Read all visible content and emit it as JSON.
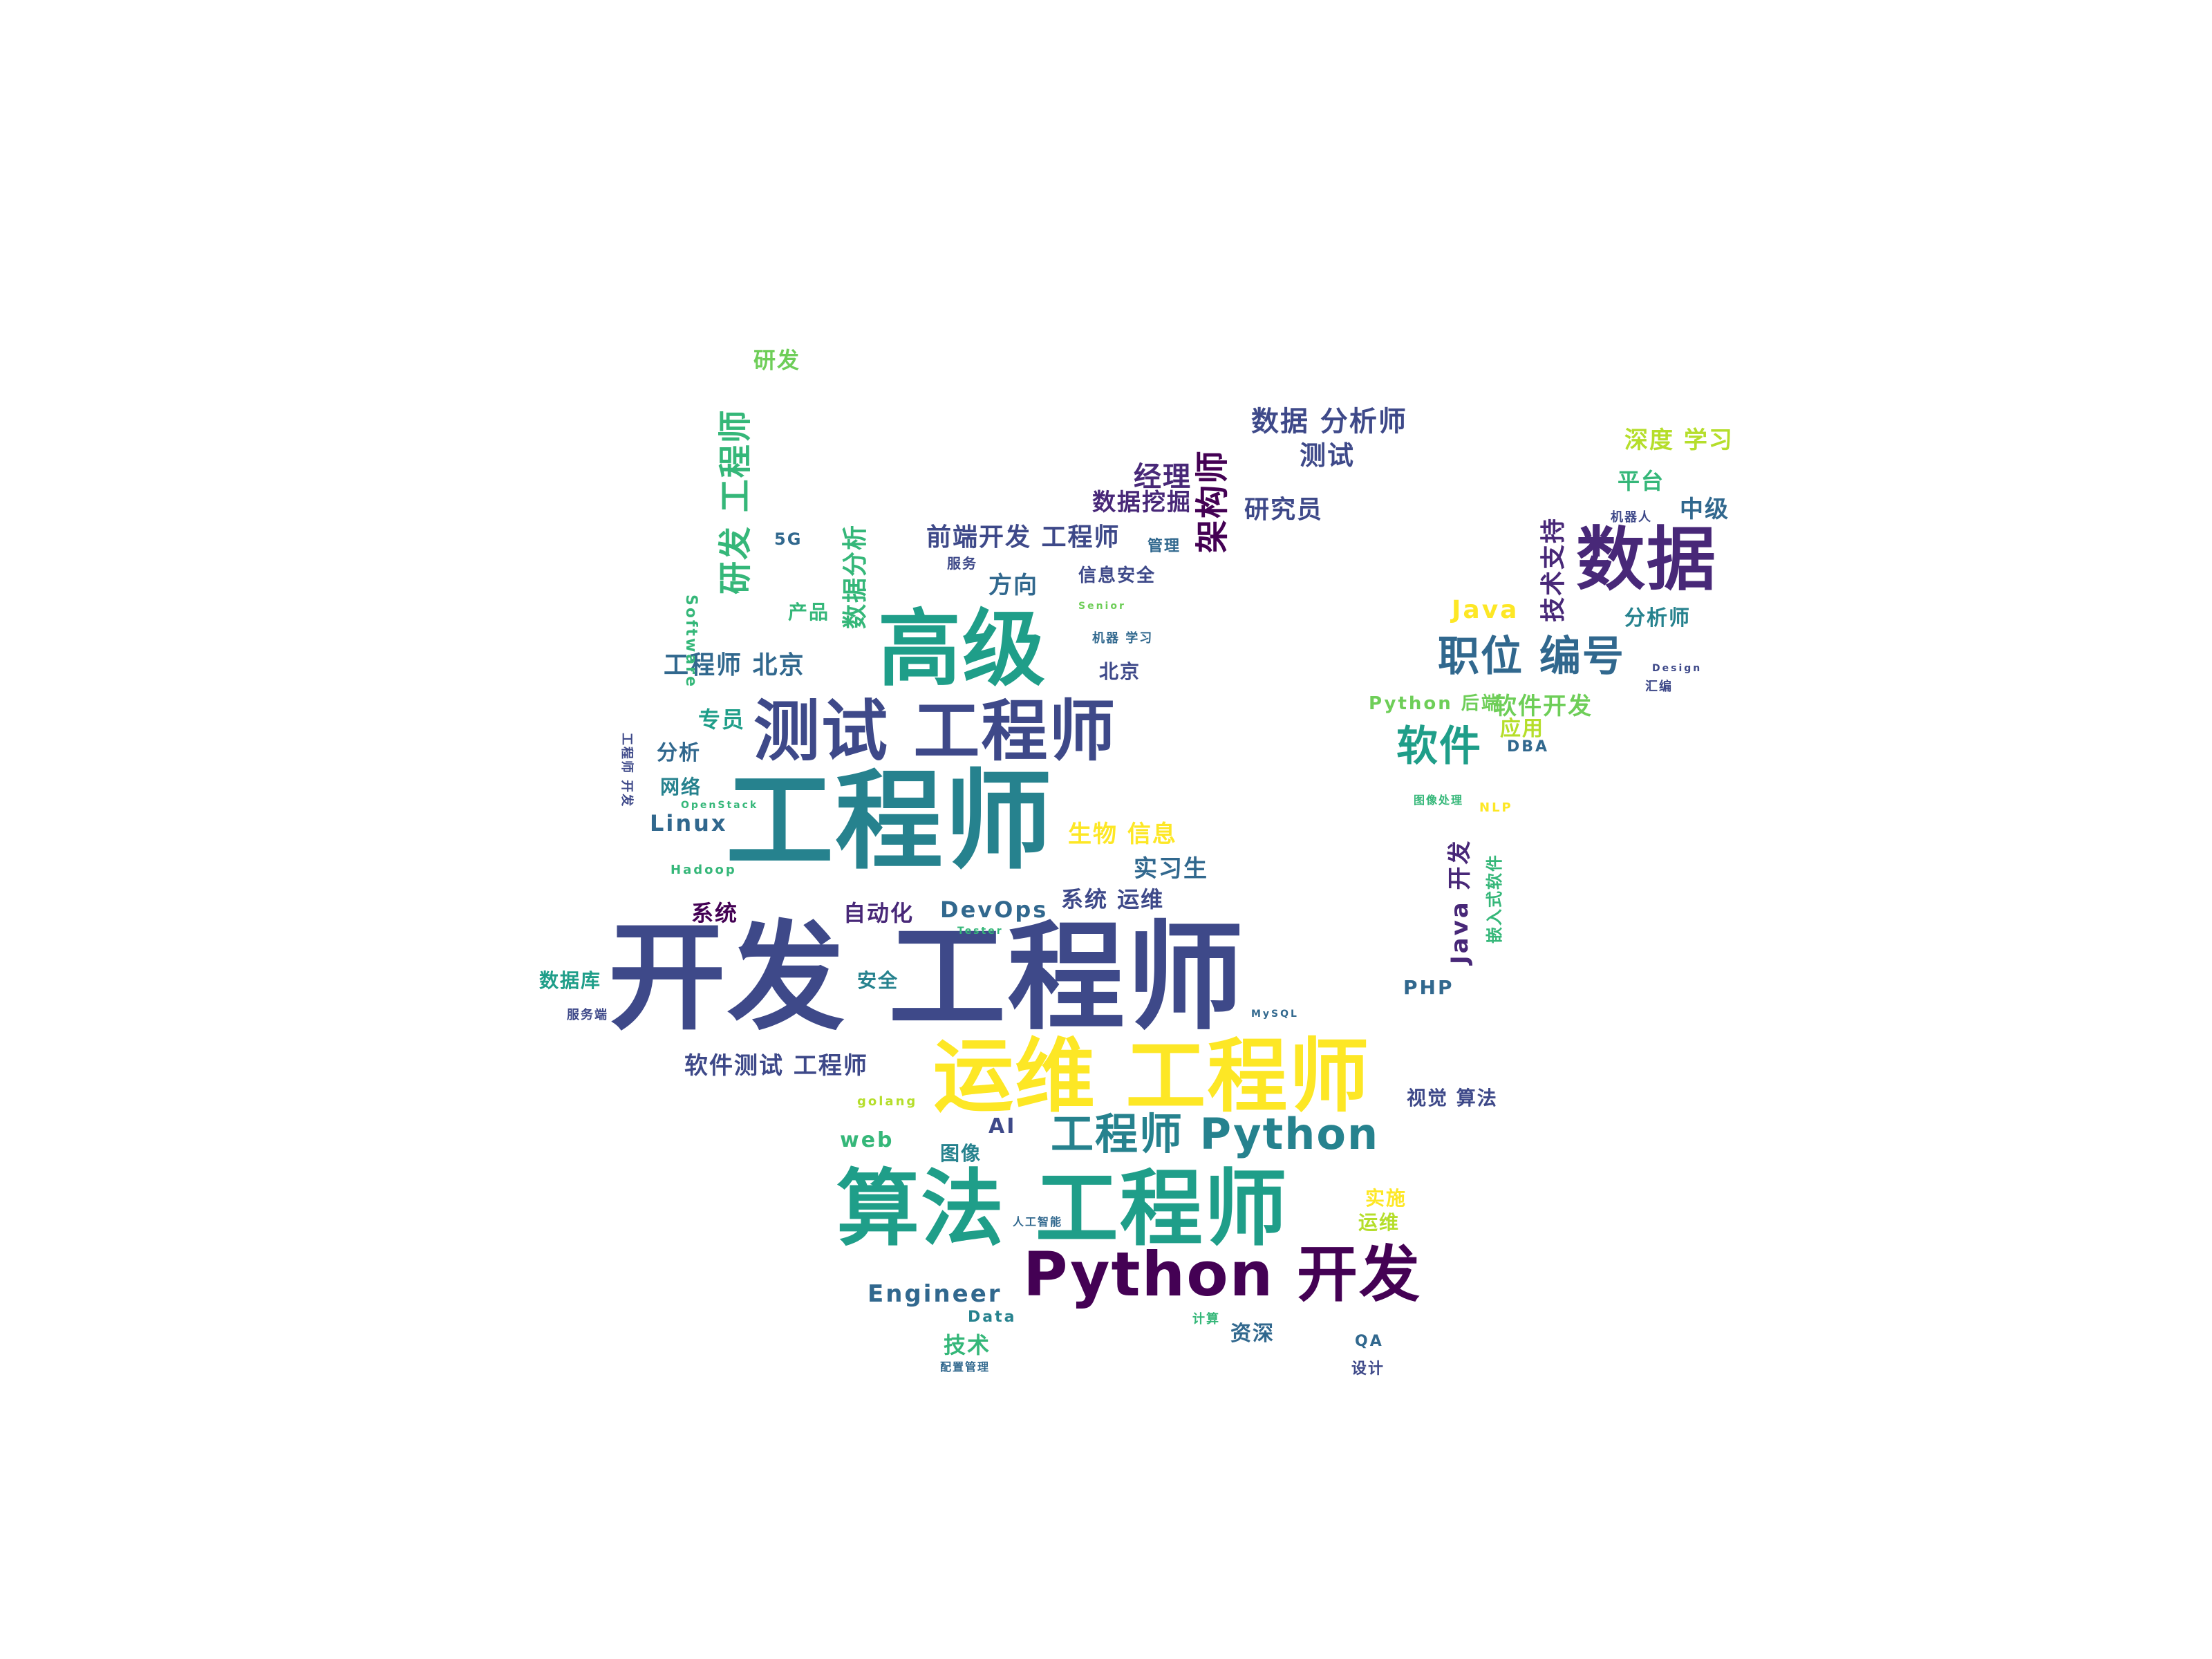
{
  "palette": {
    "background": "#ffffff",
    "dark_purple": "#440154",
    "purple": "#482878",
    "indigo": "#3e4989",
    "blue": "#31688e",
    "teal": "#26828e",
    "green_teal": "#1f9e89",
    "green": "#35b779",
    "light_green": "#6ece58",
    "lime": "#b5de2b",
    "yellow": "#fde725"
  },
  "words": [
    {
      "text": "开发 工程师",
      "color": "#3e4989"
    },
    {
      "text": "工程师",
      "color": "#26828e"
    },
    {
      "text": "运维 工程师",
      "color": "#fde725"
    },
    {
      "text": "算法 工程师",
      "color": "#1f9e89"
    },
    {
      "text": "测试 工程师",
      "color": "#3e4989"
    },
    {
      "text": "高级",
      "color": "#1f9e89"
    },
    {
      "text": "Python 开发",
      "color": "#440154"
    },
    {
      "text": "数据",
      "color": "#482878"
    },
    {
      "text": "工程师 Python",
      "color": "#26828e"
    },
    {
      "text": "职位 编号",
      "color": "#31688e"
    },
    {
      "text": "软件",
      "color": "#1f9e89"
    },
    {
      "text": "数据 分析师",
      "color": "#3e4989"
    },
    {
      "text": "研发 工程师",
      "color": "#35b779"
    },
    {
      "text": "前端开发 工程师",
      "color": "#3e4989"
    },
    {
      "text": "架构师",
      "color": "#440154"
    },
    {
      "text": "经理",
      "color": "#482878"
    },
    {
      "text": "数据挖掘",
      "color": "#482878"
    },
    {
      "text": "研究员",
      "color": "#3e4989"
    },
    {
      "text": "测试",
      "color": "#3e4989"
    },
    {
      "text": "深度 学习",
      "color": "#b5de2b"
    },
    {
      "text": "平台",
      "color": "#35b779"
    },
    {
      "text": "中级",
      "color": "#31688e"
    },
    {
      "text": "技术支持",
      "color": "#482878"
    },
    {
      "text": "Java",
      "color": "#fde725"
    },
    {
      "text": "分析师",
      "color": "#26828e"
    },
    {
      "text": "软件开发",
      "color": "#6ece58"
    },
    {
      "text": "应用",
      "color": "#b5de2b"
    },
    {
      "text": "Python 后端",
      "color": "#6ece58"
    },
    {
      "text": "研发",
      "color": "#6ece58"
    },
    {
      "text": "数据分析",
      "color": "#35b779"
    },
    {
      "text": "方向",
      "color": "#31688e"
    },
    {
      "text": "信息安全",
      "color": "#3e4989"
    },
    {
      "text": "工程师 北京",
      "color": "#31688e"
    },
    {
      "text": "北京",
      "color": "#3e4989"
    },
    {
      "text": "产品",
      "color": "#35b779"
    },
    {
      "text": "专员",
      "color": "#1f9e89"
    },
    {
      "text": "分析",
      "color": "#31688e"
    },
    {
      "text": "网络",
      "color": "#26828e"
    },
    {
      "text": "Linux",
      "color": "#31688e"
    },
    {
      "text": "生物 信息",
      "color": "#fde725"
    },
    {
      "text": "实习生",
      "color": "#31688e"
    },
    {
      "text": "系统",
      "color": "#440154"
    },
    {
      "text": "自动化",
      "color": "#482878"
    },
    {
      "text": "DevOps",
      "color": "#31688e"
    },
    {
      "text": "系统 运维",
      "color": "#3e4989"
    },
    {
      "text": "Java 开发",
      "color": "#482878"
    },
    {
      "text": "嵌入式软件",
      "color": "#35b779"
    },
    {
      "text": "数据库",
      "color": "#1f9e89"
    },
    {
      "text": "安全",
      "color": "#26828e"
    },
    {
      "text": "软件测试 工程师",
      "color": "#3e4989"
    },
    {
      "text": "PHP",
      "color": "#31688e"
    },
    {
      "text": "视觉 算法",
      "color": "#3e4989"
    },
    {
      "text": "web",
      "color": "#35b779"
    },
    {
      "text": "图像",
      "color": "#26828e"
    },
    {
      "text": "AI",
      "color": "#3e4989"
    },
    {
      "text": "实施",
      "color": "#fde725"
    },
    {
      "text": "运维",
      "color": "#b5de2b"
    },
    {
      "text": "Engineer",
      "color": "#31688e"
    },
    {
      "text": "Data",
      "color": "#26828e"
    },
    {
      "text": "技术",
      "color": "#35b779"
    },
    {
      "text": "资深",
      "color": "#31688e"
    },
    {
      "text": "QA",
      "color": "#31688e"
    },
    {
      "text": "设计",
      "color": "#3e4989"
    },
    {
      "text": "管理",
      "color": "#31688e"
    },
    {
      "text": "服务",
      "color": "#3e4989"
    },
    {
      "text": "5G",
      "color": "#31688e"
    },
    {
      "text": "Software",
      "color": "#35b779"
    },
    {
      "text": "工程师 开发",
      "color": "#3e4989"
    },
    {
      "text": "DBA",
      "color": "#31688e"
    },
    {
      "text": "汇编",
      "color": "#3e4989"
    },
    {
      "text": "机器 学习",
      "color": "#31688e"
    },
    {
      "text": "NLP",
      "color": "#fde725"
    },
    {
      "text": "服务端",
      "color": "#3e4989"
    },
    {
      "text": "人工智能",
      "color": "#31688e"
    },
    {
      "text": "golang",
      "color": "#b5de2b"
    },
    {
      "text": "Hadoop",
      "color": "#35b779"
    },
    {
      "text": "OpenStack",
      "color": "#35b779"
    },
    {
      "text": "计算",
      "color": "#35b779"
    },
    {
      "text": "配置管理",
      "color": "#31688e"
    },
    {
      "text": "机器人",
      "color": "#3e4989"
    },
    {
      "text": "Design",
      "color": "#3e4989"
    },
    {
      "text": "图像处理",
      "color": "#35b779"
    },
    {
      "text": "MySQL",
      "color": "#31688e"
    },
    {
      "text": "Senior",
      "color": "#6ece58"
    },
    {
      "text": "Tester",
      "color": "#35b779"
    }
  ]
}
